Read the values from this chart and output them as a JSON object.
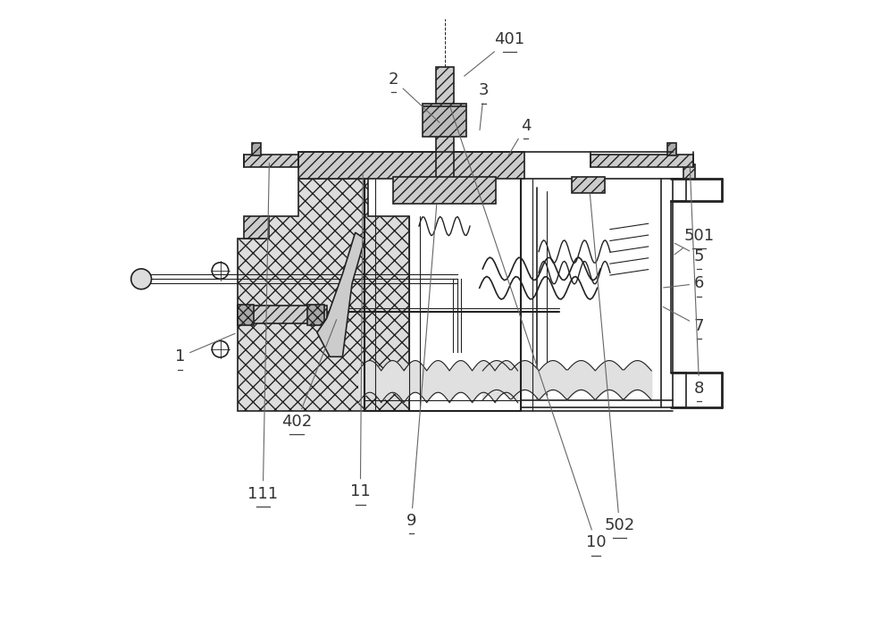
{
  "bg_color": "#ffffff",
  "line_color": "#555555",
  "dark_line": "#222222",
  "font_size": 13
}
